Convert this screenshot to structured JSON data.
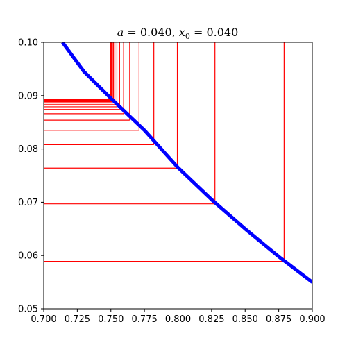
{
  "chart_data": {
    "type": "line",
    "title": "a = 0.040, x₀ = 0.040",
    "title_parts": {
      "a_symbol": "a",
      "a_text": " = 0.040, ",
      "x_symbol": "x",
      "x_subscript": "0",
      "x_text": " = 0.040"
    },
    "xlabel": "",
    "ylabel": "",
    "xlim": [
      0.7,
      0.9
    ],
    "ylim": [
      0.05,
      0.1
    ],
    "grid": false,
    "x_ticks": [
      "0.700",
      "0.725",
      "0.750",
      "0.775",
      "0.800",
      "0.825",
      "0.850",
      "0.875",
      "0.900"
    ],
    "y_ticks": [
      "0.05",
      "0.06",
      "0.07",
      "0.08",
      "0.09",
      "0.10"
    ],
    "series": [
      {
        "role": "curve",
        "color": "#0000ff",
        "x": [
          0.714,
          0.73,
          0.75,
          0.775,
          0.8,
          0.825,
          0.85,
          0.875,
          0.9
        ],
        "y": [
          0.1,
          0.0945,
          0.0895,
          0.0835,
          0.0765,
          0.0705,
          0.065,
          0.0598,
          0.055
        ]
      },
      {
        "role": "cobweb",
        "color": "#ff0000",
        "steps": [
          {
            "x": 0.879,
            "y": 0.0589
          },
          {
            "x": 0.8275,
            "y": 0.0697
          },
          {
            "x": 0.7995,
            "y": 0.0764
          },
          {
            "x": 0.782,
            "y": 0.0808
          },
          {
            "x": 0.771,
            "y": 0.0835
          },
          {
            "x": 0.764,
            "y": 0.0854
          },
          {
            "x": 0.7595,
            "y": 0.0866
          },
          {
            "x": 0.7565,
            "y": 0.0874
          },
          {
            "x": 0.7545,
            "y": 0.0879
          },
          {
            "x": 0.753,
            "y": 0.0883
          },
          {
            "x": 0.752,
            "y": 0.0886
          },
          {
            "x": 0.7512,
            "y": 0.0888
          },
          {
            "x": 0.7507,
            "y": 0.0889
          },
          {
            "x": 0.7503,
            "y": 0.089
          },
          {
            "x": 0.75,
            "y": 0.0891
          },
          {
            "x": 0.7498,
            "y": 0.0892
          },
          {
            "x": 0.7497,
            "y": 0.0892
          },
          {
            "x": 0.7496,
            "y": 0.0893
          },
          {
            "x": 0.7495,
            "y": 0.0893
          },
          {
            "x": 0.7495,
            "y": 0.0893
          }
        ]
      }
    ]
  }
}
